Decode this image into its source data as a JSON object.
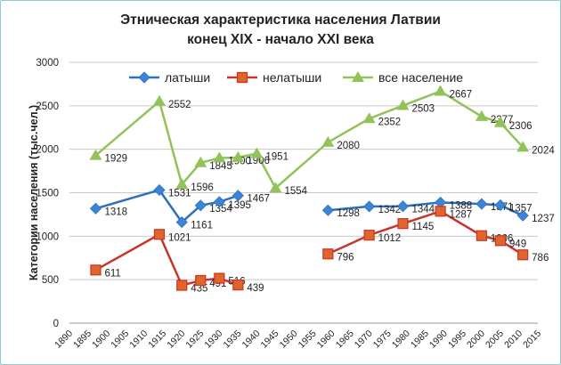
{
  "chart_data": {
    "type": "line",
    "title_line1": "Этническая характеристика населения Латвии",
    "title_line2": "конец XIX - начало XXI века",
    "xlabel": "",
    "ylabel": "Категории населения (тыс.чел.)",
    "xlim": [
      1890,
      2015
    ],
    "ylim": [
      0,
      3000
    ],
    "x_ticks": [
      1890,
      1895,
      1900,
      1905,
      1910,
      1915,
      1920,
      1925,
      1930,
      1935,
      1940,
      1945,
      1950,
      1955,
      1960,
      1965,
      1970,
      1975,
      1980,
      1985,
      1990,
      1995,
      2000,
      2005,
      2010,
      2015
    ],
    "y_ticks": [
      0,
      500,
      1000,
      1500,
      2000,
      2500,
      3000
    ],
    "grid": "horizontal",
    "legend_position": "top",
    "series": [
      {
        "name": "латыши",
        "color": "#2f6fc0",
        "marker": "diamond",
        "marker_color": "#3a86d4",
        "points": [
          [
            1897,
            1318
          ],
          [
            1914,
            1531
          ],
          [
            1920,
            1161
          ],
          [
            1925,
            1354
          ],
          [
            1930,
            1395
          ],
          [
            1935,
            1467
          ],
          null,
          [
            1959,
            1298
          ],
          [
            1970,
            1342
          ],
          [
            1979,
            1344
          ],
          [
            1989,
            1388
          ],
          [
            2000,
            1371
          ],
          [
            2005,
            1357
          ],
          [
            2011,
            1237
          ]
        ]
      },
      {
        "name": "нелатыши",
        "color": "#c8352a",
        "marker": "square",
        "marker_color": "#e0652a",
        "points": [
          [
            1897,
            611
          ],
          [
            1914,
            1021
          ],
          [
            1920,
            435
          ],
          [
            1925,
            491
          ],
          [
            1930,
            516
          ],
          [
            1935,
            439
          ],
          null,
          [
            1959,
            796
          ],
          [
            1970,
            1012
          ],
          [
            1979,
            1145
          ],
          [
            1989,
            1287
          ],
          [
            2000,
            1006
          ],
          [
            2005,
            949
          ],
          [
            2011,
            786
          ]
        ]
      },
      {
        "name": "все население",
        "color": "#92c35a",
        "marker": "triangle",
        "marker_color": "#92c35a",
        "points": [
          [
            1897,
            1929
          ],
          [
            1914,
            2552
          ],
          [
            1920,
            1596
          ],
          [
            1925,
            1845
          ],
          [
            1930,
            1900
          ],
          [
            1935,
            1906
          ],
          [
            1940,
            1951
          ],
          [
            1945,
            1554
          ],
          [
            1959,
            2080
          ],
          [
            1970,
            2352
          ],
          [
            1979,
            2503
          ],
          [
            1989,
            2667
          ],
          [
            2000,
            2377
          ],
          [
            2005,
            2306
          ],
          [
            2011,
            2024
          ]
        ]
      }
    ]
  }
}
